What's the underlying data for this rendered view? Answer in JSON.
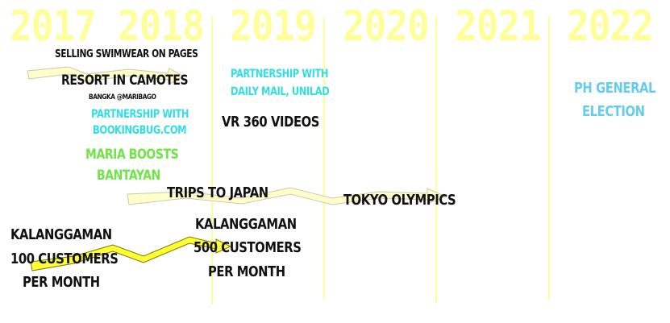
{
  "years": [
    "2017",
    "2018",
    "2019",
    "2020",
    "2021",
    "2022"
  ],
  "events": {
    "swimwear": "SELLING SWIMWEAR ON PAGES",
    "resort": "RESORT IN CAMOTES",
    "bangka": "BANGKA @MARIBAGO",
    "bookingbug_line1": "PARTNERSHIP WITH",
    "bookingbug_line2": "BOOKINGBUG.COM",
    "dailymail_line1": "PARTNERSHIP WITH",
    "dailymail_line2": "DAILY MAIL, UNILAD",
    "vr": "VR 360 VIDEOS",
    "maria_line1": "MARIA BOOSTS",
    "maria_line2": "BANTAYAN",
    "japan": "TRIPS TO JAPAN",
    "olympics": "TOKYO OLYMPICS",
    "election_line1": "PH GENERAL",
    "election_line2": "ELECTION",
    "kal100_line1": "KALANGGAMAN",
    "kal100_line2": "100 CUSTOMERS",
    "kal100_line3": "PER MONTH",
    "kal500_line1": "KALANGGAMAN",
    "kal500_line2": "500 CUSTOMERS",
    "kal500_line3": "PER MONTH"
  },
  "colors": {
    "year": "#ffff99",
    "cyan": "#33dde6",
    "green": "#6ee544",
    "light_blue": "#66ccee",
    "arrow_pale": "#ffffcc",
    "arrow_bright": "#ffff33"
  }
}
